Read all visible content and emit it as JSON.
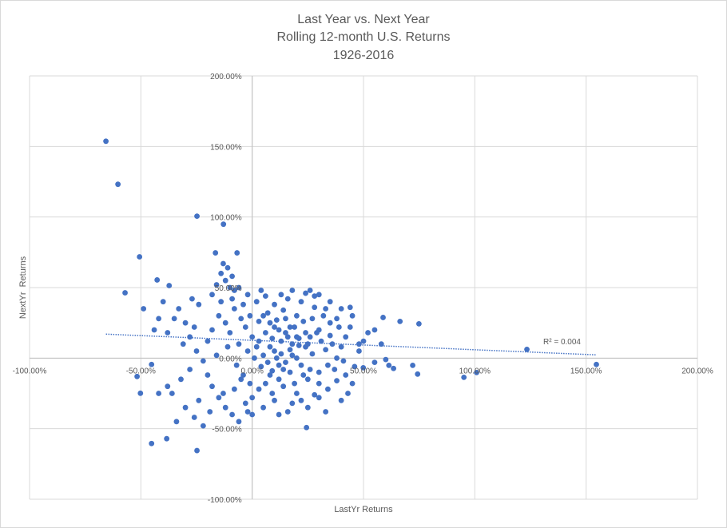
{
  "chart_data": {
    "type": "scatter",
    "title": [
      "Last Year vs. Next Year",
      "Rolling 12-month U.S. Returns",
      "1926-2016"
    ],
    "xlabel": "LastYr Returns",
    "ylabel": "NextYr  Returns",
    "xlim": [
      -100,
      200
    ],
    "ylim": [
      -100,
      200
    ],
    "xticks": [
      -100,
      -50,
      0,
      50,
      100,
      150,
      200
    ],
    "yticks": [
      -100,
      -50,
      0,
      50,
      100,
      150,
      200
    ],
    "xtick_labels": [
      "-100.00%",
      "-50.00%",
      "0.00%",
      "50.00%",
      "100.00%",
      "150.00%",
      "200.00%"
    ],
    "ytick_labels": [
      "-100.00%",
      "-50.00%",
      "0.00%",
      "50.00%",
      "100.00%",
      "150.00%",
      "200.00%"
    ],
    "grid": true,
    "marker_color": "#4472c4",
    "trendline": {
      "type": "linear",
      "style": "dotted",
      "x": [
        -65.7,
        154.6
      ],
      "y": [
        17.0,
        2.3
      ],
      "label": "R² = 0.004"
    },
    "points": [
      [
        -65.7,
        153.7
      ],
      [
        -60.3,
        123.2
      ],
      [
        -24.8,
        100.6
      ],
      [
        -12.9,
        94.9
      ],
      [
        -50.6,
        71.8
      ],
      [
        -16.5,
        74.6
      ],
      [
        -6.8,
        74.6
      ],
      [
        -57.1,
        46.3
      ],
      [
        -48.8,
        35.0
      ],
      [
        -42.7,
        55.4
      ],
      [
        -37.3,
        51.4
      ],
      [
        -45.2,
        -4.5
      ],
      [
        -50.2,
        -24.9
      ],
      [
        -51.7,
        -13.0
      ],
      [
        -45.2,
        -60.5
      ],
      [
        -24.8,
        -65.5
      ],
      [
        -38.4,
        -57.1
      ],
      [
        24.4,
        -49.2
      ],
      [
        123.4,
        6.2
      ],
      [
        154.6,
        -4.5
      ],
      [
        95.1,
        -13.6
      ],
      [
        100.8,
        -10.2
      ],
      [
        74.3,
        -11.3
      ],
      [
        72.1,
        -5.1
      ],
      [
        74.9,
        24.3
      ],
      [
        66.4,
        26.0
      ],
      [
        58.8,
        28.8
      ],
      [
        49.9,
        -6.8
      ],
      [
        63.5,
        -7.3
      ],
      [
        61.4,
        -5.1
      ],
      [
        5,
        30
      ],
      [
        8,
        25
      ],
      [
        12,
        20
      ],
      [
        15,
        18
      ],
      [
        20,
        15
      ],
      [
        25,
        10
      ],
      [
        10,
        5
      ],
      [
        3,
        12
      ],
      [
        18,
        2
      ],
      [
        22,
        -5
      ],
      [
        14,
        -8
      ],
      [
        7,
        -3
      ],
      [
        0,
        15
      ],
      [
        -3,
        22
      ],
      [
        -5,
        28
      ],
      [
        -8,
        35
      ],
      [
        2,
        40
      ],
      [
        6,
        44
      ],
      [
        10,
        38
      ],
      [
        16,
        42
      ],
      [
        22,
        40
      ],
      [
        28,
        36
      ],
      [
        32,
        30
      ],
      [
        35,
        25
      ],
      [
        30,
        20
      ],
      [
        26,
        15
      ],
      [
        24,
        8
      ],
      [
        20,
        0
      ],
      [
        17,
        -10
      ],
      [
        12,
        -15
      ],
      [
        8,
        -12
      ],
      [
        4,
        -6
      ],
      [
        1,
        0
      ],
      [
        -2,
        5
      ],
      [
        -6,
        10
      ],
      [
        -10,
        18
      ],
      [
        -12,
        25
      ],
      [
        -15,
        30
      ],
      [
        -18,
        20
      ],
      [
        -20,
        12
      ],
      [
        -7,
        -5
      ],
      [
        -4,
        -12
      ],
      [
        -1,
        -18
      ],
      [
        3,
        -22
      ],
      [
        9,
        -25
      ],
      [
        14,
        -20
      ],
      [
        19,
        -18
      ],
      [
        25,
        -15
      ],
      [
        30,
        -10
      ],
      [
        34,
        -5
      ],
      [
        38,
        0
      ],
      [
        40,
        8
      ],
      [
        42,
        15
      ],
      [
        44,
        22
      ],
      [
        38,
        28
      ],
      [
        33,
        35
      ],
      [
        28,
        44
      ],
      [
        24,
        46
      ],
      [
        18,
        48
      ],
      [
        13,
        45
      ],
      [
        4,
        48
      ],
      [
        -2,
        45
      ],
      [
        -9,
        42
      ],
      [
        -14,
        40
      ],
      [
        -11,
        8
      ],
      [
        -16,
        2
      ],
      [
        -22,
        -2
      ],
      [
        -25,
        5
      ],
      [
        -28,
        15
      ],
      [
        -30,
        25
      ],
      [
        -33,
        35
      ],
      [
        -35,
        28
      ],
      [
        -38,
        18
      ],
      [
        -40,
        40
      ],
      [
        -27,
        42
      ],
      [
        -24,
        38
      ],
      [
        -20,
        -12
      ],
      [
        -18,
        -20
      ],
      [
        -15,
        -28
      ],
      [
        -12,
        -35
      ],
      [
        -9,
        -40
      ],
      [
        -6,
        -45
      ],
      [
        -3,
        -32
      ],
      [
        0,
        -28
      ],
      [
        5,
        -35
      ],
      [
        10,
        -30
      ],
      [
        16,
        -38
      ],
      [
        22,
        -30
      ],
      [
        28,
        -26
      ],
      [
        34,
        -22
      ],
      [
        38,
        -16
      ],
      [
        42,
        -12
      ],
      [
        46,
        -6
      ],
      [
        48,
        5
      ],
      [
        50,
        12
      ],
      [
        52,
        18
      ],
      [
        55,
        20
      ],
      [
        45,
        30
      ],
      [
        40,
        35
      ],
      [
        35,
        40
      ],
      [
        30,
        45
      ],
      [
        26,
        48
      ],
      [
        20,
        30
      ],
      [
        15,
        28
      ],
      [
        10,
        22
      ],
      [
        6,
        18
      ],
      [
        2,
        8
      ],
      [
        13,
        12
      ],
      [
        17,
        6
      ],
      [
        21,
        9
      ],
      [
        27,
        3
      ],
      [
        31,
        12
      ],
      [
        36,
        10
      ],
      [
        9,
        14
      ],
      [
        11,
        0
      ],
      [
        15,
        -3
      ],
      [
        19,
        22
      ],
      [
        23,
        26
      ],
      [
        29,
        18
      ],
      [
        33,
        6
      ],
      [
        37,
        -8
      ],
      [
        41,
        -2
      ],
      [
        7,
        32
      ],
      [
        3,
        26
      ],
      [
        -1,
        30
      ],
      [
        -4,
        38
      ],
      [
        12,
        -5
      ],
      [
        16,
        15
      ],
      [
        18,
        10
      ],
      [
        24,
        18
      ],
      [
        26,
        -8
      ],
      [
        30,
        -18
      ],
      [
        14,
        34
      ],
      [
        8,
        8
      ],
      [
        5,
        2
      ],
      [
        20,
        -25
      ],
      [
        25,
        -35
      ],
      [
        33,
        -38
      ],
      [
        40,
        -30
      ],
      [
        -28,
        -8
      ],
      [
        -32,
        -15
      ],
      [
        -36,
        -25
      ],
      [
        -30,
        -35
      ],
      [
        -26,
        -42
      ],
      [
        -22,
        -48
      ],
      [
        -34,
        -45
      ],
      [
        -38,
        -20
      ],
      [
        -42,
        -25
      ],
      [
        -24,
        -30
      ],
      [
        -19,
        -38
      ],
      [
        -13,
        -25
      ],
      [
        -8,
        -22
      ],
      [
        -5,
        -15
      ],
      [
        -10,
        50
      ],
      [
        -12,
        55
      ],
      [
        -14,
        60
      ],
      [
        -11,
        64
      ],
      [
        -9,
        58
      ],
      [
        -16,
        52
      ],
      [
        -18,
        45
      ],
      [
        -6,
        50
      ],
      [
        -13,
        67
      ],
      [
        -8,
        48
      ],
      [
        55,
        -3
      ],
      [
        58,
        10
      ],
      [
        60,
        -1
      ],
      [
        45,
        -18
      ],
      [
        43,
        -25
      ],
      [
        30,
        -28
      ],
      [
        18,
        -32
      ],
      [
        12,
        -40
      ],
      [
        0,
        -40
      ],
      [
        -2,
        -38
      ],
      [
        17,
        22
      ],
      [
        21,
        14
      ],
      [
        11,
        27
      ],
      [
        27,
        28
      ],
      [
        13,
        3
      ],
      [
        9,
        -9
      ],
      [
        23,
        -12
      ],
      [
        6,
        -18
      ],
      [
        35,
        16
      ],
      [
        39,
        22
      ],
      [
        44,
        36
      ],
      [
        48,
        10
      ],
      [
        -26,
        22
      ],
      [
        -31,
        10
      ],
      [
        -44,
        20
      ],
      [
        -42,
        28
      ]
    ]
  }
}
